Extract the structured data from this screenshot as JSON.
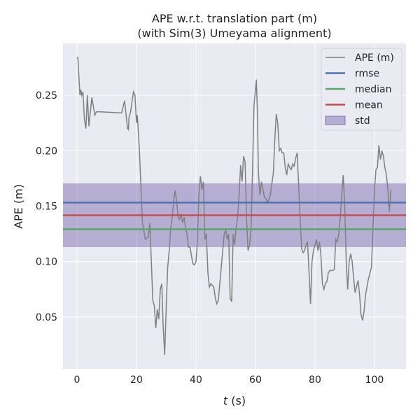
{
  "chart_data": {
    "type": "line",
    "title": "APE w.r.t. translation part (m)",
    "subtitle": "(with Sim(3) Umeyama alignment)",
    "xlabel_italic": "t",
    "xlabel_unit": " (s)",
    "ylabel": "APE (m)",
    "xlim": [
      -4.7,
      110.6
    ],
    "ylim": [
      0.0033,
      0.2967
    ],
    "xticks": [
      0,
      20,
      40,
      60,
      80,
      100
    ],
    "xtick_labels": [
      "0",
      "20",
      "40",
      "60",
      "80",
      "100"
    ],
    "yticks": [
      0.05,
      0.1,
      0.15,
      0.2,
      0.25
    ],
    "ytick_labels": [
      "0.05",
      "0.10",
      "0.15",
      "0.20",
      "0.25"
    ],
    "grid": true,
    "legend_position": "top-right",
    "colors": {
      "background": "#eaeaf2",
      "ape": "#808080",
      "rmse": "#4c72b0",
      "median": "#55a868",
      "mean": "#c44e52",
      "std": "#8172b2"
    },
    "legend": [
      "APE (m)",
      "rmse",
      "median",
      "mean",
      "std"
    ],
    "stats": {
      "rmse": 0.1532,
      "median": 0.1292,
      "mean": 0.1418,
      "std_low": 0.1131,
      "std_high": 0.1705
    },
    "series": [
      {
        "name": "APE (m)",
        "t": [
          0,
          0.3,
          1,
          1.3,
          1.6,
          2,
          2.5,
          3,
          3.5,
          4,
          4.5,
          5,
          5.5,
          6,
          6.5,
          8,
          15,
          16,
          17,
          17.3,
          17.5,
          18,
          19,
          19.5,
          20,
          20.3,
          21,
          22,
          23,
          24,
          24.5,
          25,
          25.5,
          26,
          26.5,
          27,
          27.5,
          28,
          28.5,
          29,
          29.5,
          30,
          30.5,
          31,
          31.5,
          32,
          32.5,
          33,
          33.5,
          34,
          34.5,
          35,
          35.5,
          36,
          36.5,
          37,
          37.5,
          38,
          38.5,
          39,
          39.5,
          40,
          40.5,
          41,
          41.5,
          42,
          42.5,
          43,
          43.5,
          44,
          44.5,
          45,
          46,
          46.5,
          47,
          47.5,
          48,
          49,
          49.5,
          50,
          50.5,
          51,
          51.5,
          52,
          52.5,
          53,
          53.5,
          54,
          54.5,
          55,
          55.5,
          56,
          56.5,
          57,
          57.5,
          58,
          58.5,
          59,
          59.5,
          60,
          60.3,
          60.6,
          61,
          61.5,
          62,
          62.5,
          63,
          63.5,
          64,
          64.5,
          65,
          65.5,
          66,
          66.5,
          67,
          67.5,
          68,
          68.5,
          69,
          69.5,
          70,
          70.5,
          71,
          71.5,
          72,
          72.5,
          73,
          73.5,
          74,
          74.5,
          75,
          75.5,
          76,
          76.5,
          77,
          77.5,
          78,
          78.5,
          79,
          79.5,
          80,
          80.5,
          81,
          81.5,
          82,
          82.5,
          83,
          83.5,
          84,
          84.5,
          85,
          86,
          86.5,
          87,
          87.5,
          88,
          88.5,
          89,
          89.5,
          90,
          90.5,
          91,
          91.5,
          92,
          92.5,
          93,
          93.5,
          94,
          94.5,
          95,
          95.5,
          96,
          96.5,
          97,
          98,
          99,
          99.5,
          100,
          100.5,
          101,
          101.5,
          102,
          102.5,
          103,
          103.5,
          104,
          104.5,
          105,
          105.5
        ],
        "y": [
          0.283,
          0.284,
          0.25,
          0.255,
          0.25,
          0.253,
          0.228,
          0.22,
          0.25,
          0.222,
          0.235,
          0.248,
          0.24,
          0.232,
          0.235,
          0.235,
          0.234,
          0.245,
          0.22,
          0.219,
          0.23,
          0.235,
          0.253,
          0.25,
          0.225,
          0.232,
          0.2,
          0.135,
          0.12,
          0.122,
          0.135,
          0.1,
          0.065,
          0.06,
          0.04,
          0.057,
          0.048,
          0.075,
          0.08,
          0.04,
          0.016,
          0.06,
          0.095,
          0.11,
          0.13,
          0.14,
          0.155,
          0.164,
          0.155,
          0.14,
          0.138,
          0.143,
          0.135,
          0.14,
          0.13,
          0.125,
          0.113,
          0.113,
          0.105,
          0.098,
          0.097,
          0.1,
          0.12,
          0.16,
          0.177,
          0.165,
          0.172,
          0.12,
          0.125,
          0.09,
          0.077,
          0.08,
          0.077,
          0.067,
          0.062,
          0.065,
          0.08,
          0.11,
          0.125,
          0.128,
          0.12,
          0.125,
          0.067,
          0.064,
          0.125,
          0.115,
          0.13,
          0.14,
          0.16,
          0.187,
          0.172,
          0.195,
          0.19,
          0.14,
          0.11,
          0.115,
          0.13,
          0.18,
          0.24,
          0.255,
          0.264,
          0.24,
          0.18,
          0.16,
          0.172,
          0.165,
          0.158,
          0.157,
          0.153,
          0.156,
          0.16,
          0.17,
          0.18,
          0.21,
          0.233,
          0.225,
          0.2,
          0.202,
          0.198,
          0.198,
          0.185,
          0.178,
          0.188,
          0.185,
          0.183,
          0.188,
          0.186,
          0.193,
          0.198,
          0.17,
          0.14,
          0.112,
          0.108,
          0.11,
          0.115,
          0.118,
          0.09,
          0.062,
          0.1,
          0.11,
          0.115,
          0.12,
          0.11,
          0.118,
          0.105,
          0.08,
          0.075,
          0.08,
          0.082,
          0.09,
          0.092,
          0.092,
          0.093,
          0.12,
          0.118,
          0.125,
          0.14,
          0.16,
          0.178,
          0.15,
          0.1,
          0.075,
          0.1,
          0.107,
          0.1,
          0.085,
          0.072,
          0.078,
          0.083,
          0.07,
          0.052,
          0.047,
          0.055,
          0.07,
          0.085,
          0.095,
          0.13,
          0.165,
          0.183,
          0.185,
          0.205,
          0.192,
          0.2,
          0.195,
          0.185,
          0.178,
          0.165,
          0.145,
          0.165
        ]
      }
    ]
  }
}
